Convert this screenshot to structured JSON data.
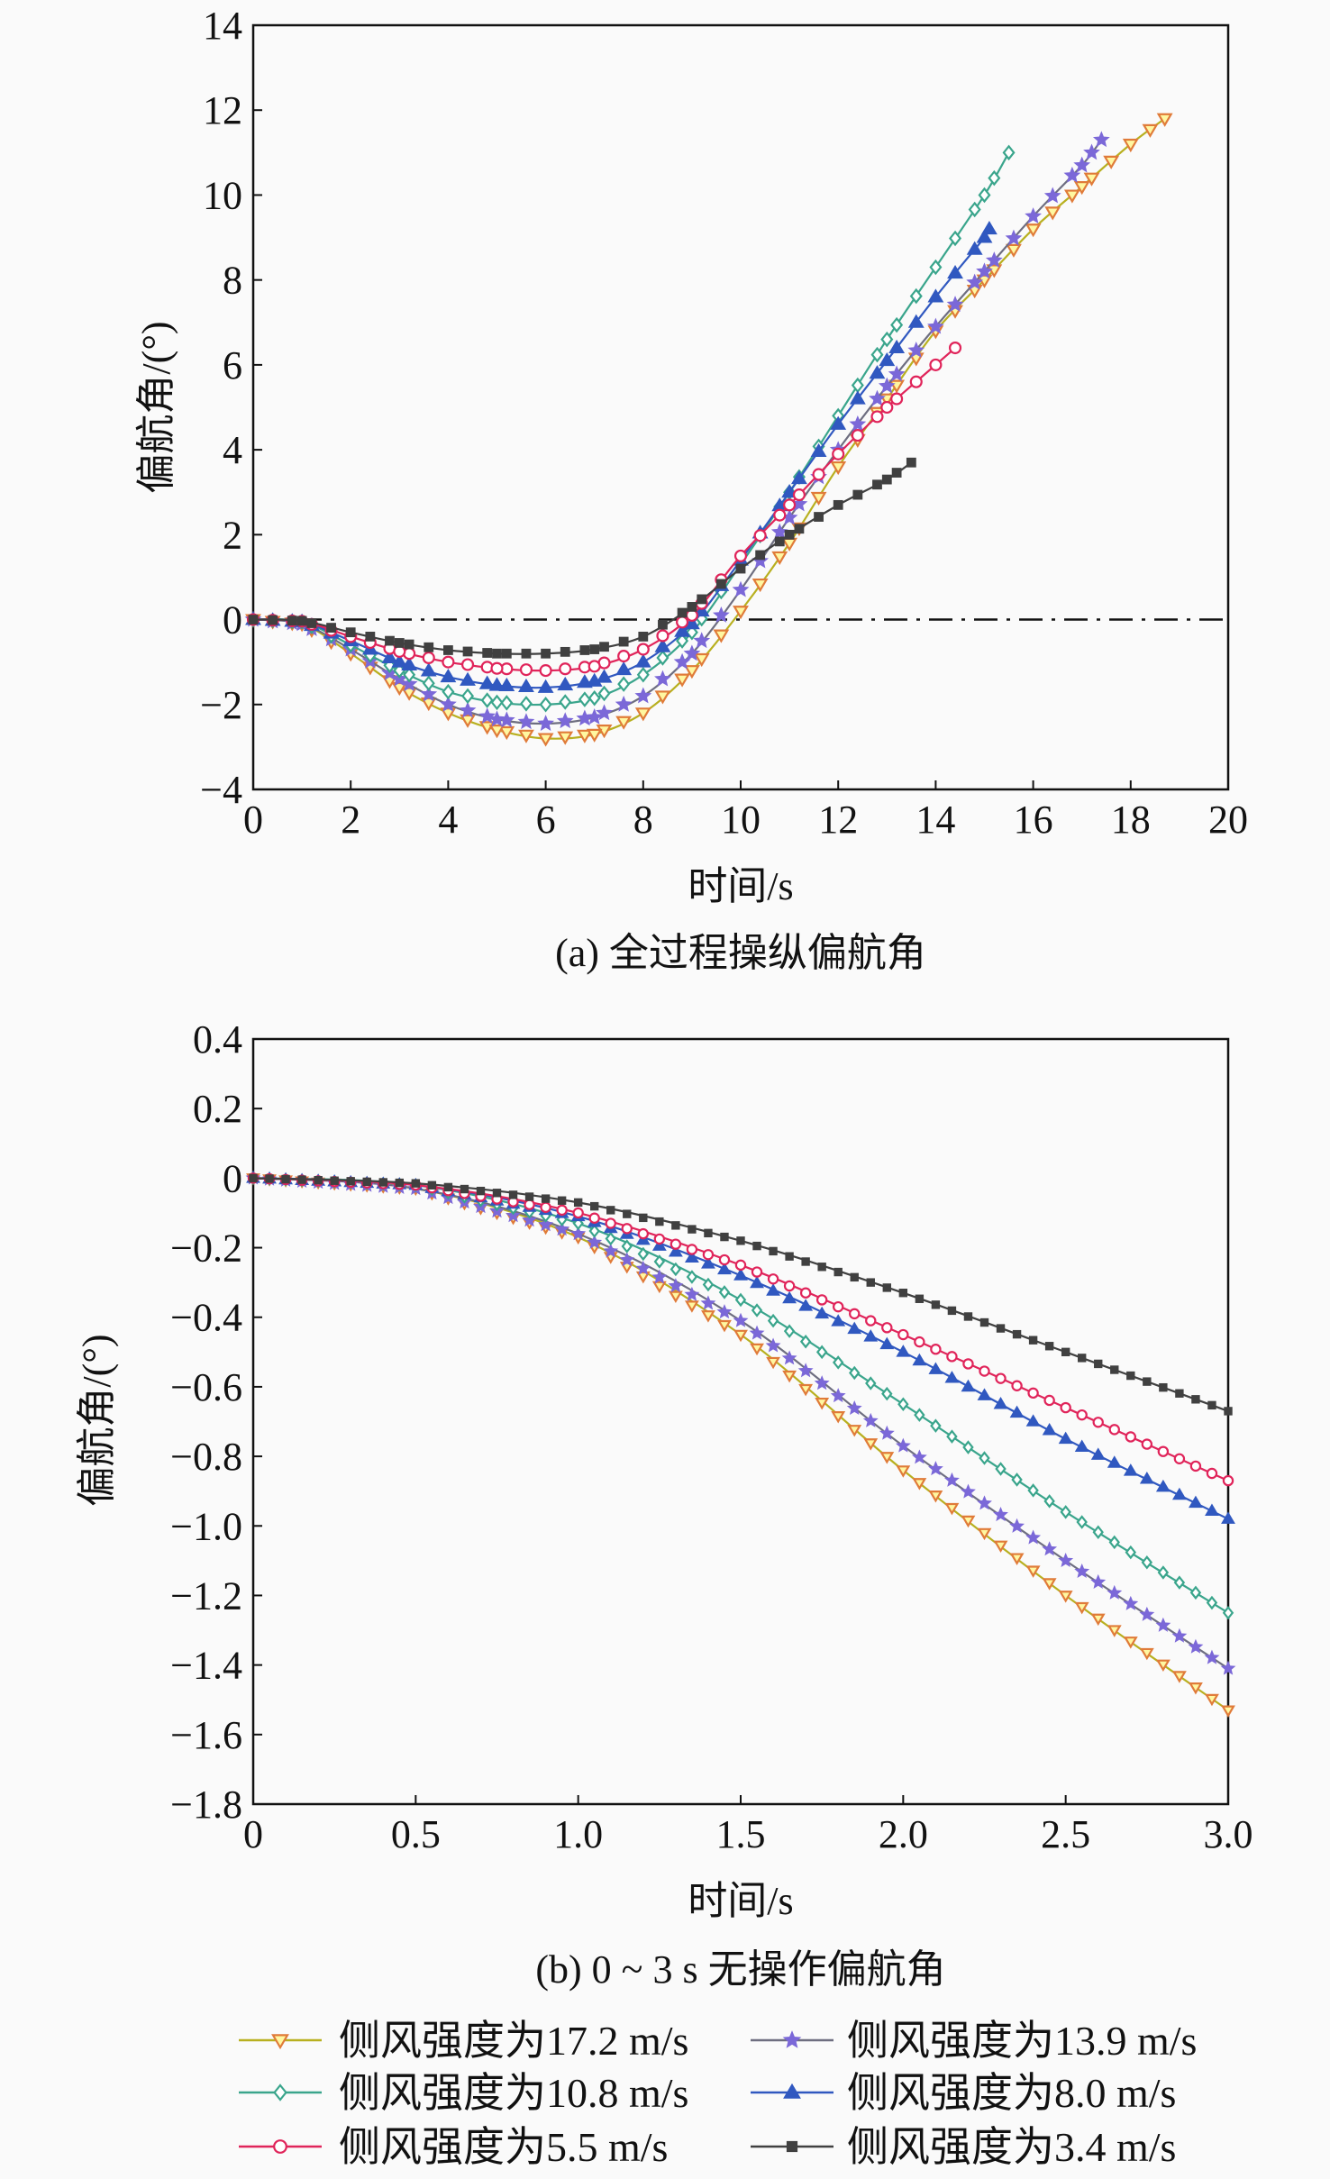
{
  "chart_data": [
    {
      "type": "line",
      "caption": "(a) 全过程操纵偏航角",
      "xlabel": "时间/s",
      "ylabel": "偏航角/(°)",
      "xlim": [
        0,
        20
      ],
      "ylim": [
        -4,
        14
      ],
      "xticks": [
        "0",
        "2",
        "4",
        "6",
        "8",
        "10",
        "12",
        "14",
        "16",
        "18",
        "20"
      ],
      "yticks": [
        "−4",
        "−2",
        "0",
        "2",
        "4",
        "6",
        "8",
        "10",
        "12",
        "14"
      ],
      "reference_line": {
        "y": 0,
        "style": "dash-dot"
      },
      "series": [
        {
          "name": "侧风强度为17.2 m/s",
          "x": [
            0,
            1,
            2,
            3,
            4,
            5,
            6,
            7,
            8,
            9,
            10,
            11,
            12,
            13,
            14,
            15,
            16,
            17,
            18,
            18.7
          ],
          "y": [
            0,
            -0.1,
            -0.8,
            -1.6,
            -2.2,
            -2.6,
            -2.8,
            -2.7,
            -2.2,
            -1.2,
            0.2,
            1.8,
            3.6,
            5.2,
            6.8,
            8.0,
            9.2,
            10.2,
            11.2,
            11.8
          ]
        },
        {
          "name": "侧风强度为13.9 m/s",
          "x": [
            0,
            1,
            2,
            3,
            4,
            5,
            6,
            7,
            8,
            9,
            10,
            11,
            12,
            13,
            14,
            15,
            16,
            17,
            17.4
          ],
          "y": [
            0,
            -0.1,
            -0.7,
            -1.4,
            -2.0,
            -2.35,
            -2.45,
            -2.3,
            -1.8,
            -0.8,
            0.7,
            2.4,
            4.0,
            5.5,
            6.9,
            8.2,
            9.5,
            10.7,
            11.3
          ]
        },
        {
          "name": "侧风强度为10.8 m/s",
          "x": [
            0,
            1,
            2,
            3,
            4,
            5,
            6,
            7,
            8,
            9,
            10,
            11,
            12,
            13,
            14,
            15,
            15.5
          ],
          "y": [
            0,
            -0.05,
            -0.6,
            -1.2,
            -1.7,
            -1.95,
            -2.0,
            -1.85,
            -1.3,
            -0.3,
            1.3,
            3.0,
            4.8,
            6.6,
            8.3,
            10.0,
            11.0
          ]
        },
        {
          "name": "侧风强度为8.0 m/s",
          "x": [
            0,
            1,
            2,
            3,
            4,
            5,
            6,
            7,
            8,
            9,
            10,
            11,
            12,
            13,
            14,
            15,
            15.1
          ],
          "y": [
            0,
            -0.05,
            -0.5,
            -1.0,
            -1.35,
            -1.55,
            -1.6,
            -1.45,
            -1.0,
            -0.1,
            1.4,
            3.0,
            4.6,
            6.1,
            7.6,
            9.0,
            9.2
          ]
        },
        {
          "name": "侧风强度为5.5 m/s",
          "x": [
            0,
            1,
            2,
            3,
            4,
            5,
            6,
            7,
            8,
            9,
            10,
            11,
            12,
            13,
            14,
            14.4
          ],
          "y": [
            0,
            -0.04,
            -0.4,
            -0.75,
            -1.0,
            -1.15,
            -1.2,
            -1.1,
            -0.7,
            0.1,
            1.5,
            2.7,
            3.9,
            5.0,
            6.0,
            6.4
          ]
        },
        {
          "name": "侧风强度为3.4 m/s",
          "x": [
            0,
            1,
            2,
            3,
            4,
            5,
            6,
            7,
            8,
            9,
            10,
            11,
            12,
            13,
            13.5
          ],
          "y": [
            0,
            -0.03,
            -0.3,
            -0.55,
            -0.72,
            -0.8,
            -0.8,
            -0.7,
            -0.4,
            0.3,
            1.2,
            2.0,
            2.7,
            3.3,
            3.7
          ]
        }
      ]
    },
    {
      "type": "line",
      "caption": "(b) 0 ~ 3 s 无操作偏航角",
      "xlabel": "时间/s",
      "ylabel": "偏航角/(°)",
      "xlim": [
        0,
        3.0
      ],
      "ylim": [
        -1.8,
        0.4
      ],
      "xticks": [
        "0",
        "0.5",
        "1.0",
        "1.5",
        "2.0",
        "2.5",
        "3.0"
      ],
      "yticks": [
        "−1.8",
        "−1.6",
        "−1.4",
        "−1.2",
        "−1.0",
        "−0.8",
        "−0.6",
        "−0.4",
        "−0.2",
        "0",
        "0.2",
        "0.4"
      ],
      "series": [
        {
          "name": "侧风强度为17.2 m/s",
          "x": [
            0,
            0.5,
            1.0,
            1.5,
            2.0,
            2.5,
            3.0
          ],
          "y": [
            0,
            -0.03,
            -0.17,
            -0.45,
            -0.84,
            -1.2,
            -1.53
          ]
        },
        {
          "name": "侧风强度为13.9 m/s",
          "x": [
            0,
            0.5,
            1.0,
            1.5,
            2.0,
            2.5,
            3.0
          ],
          "y": [
            0,
            -0.03,
            -0.16,
            -0.41,
            -0.77,
            -1.1,
            -1.41
          ]
        },
        {
          "name": "侧风强度为10.8 m/s",
          "x": [
            0,
            0.5,
            1.0,
            1.5,
            2.0,
            2.5,
            3.0
          ],
          "y": [
            0,
            -0.02,
            -0.13,
            -0.35,
            -0.65,
            -0.96,
            -1.25
          ]
        },
        {
          "name": "侧风强度为8.0 m/s",
          "x": [
            0,
            0.5,
            1.0,
            1.5,
            2.0,
            2.5,
            3.0
          ],
          "y": [
            0,
            -0.02,
            -0.11,
            -0.28,
            -0.5,
            -0.75,
            -0.98
          ]
        },
        {
          "name": "侧风强度为5.5 m/s",
          "x": [
            0,
            0.5,
            1.0,
            1.5,
            2.0,
            2.5,
            3.0
          ],
          "y": [
            0,
            -0.02,
            -0.1,
            -0.25,
            -0.45,
            -0.66,
            -0.87
          ]
        },
        {
          "name": "侧风强度为3.4 m/s",
          "x": [
            0,
            0.5,
            1.0,
            1.5,
            2.0,
            2.5,
            3.0
          ],
          "y": [
            0,
            -0.015,
            -0.07,
            -0.18,
            -0.33,
            -0.5,
            -0.67
          ]
        }
      ]
    }
  ],
  "legend": {
    "placement": "bottom",
    "items": [
      {
        "label": "侧风强度为17.2 m/s",
        "marker": "triangle-down",
        "line": "#b8b020",
        "color": "#e07b39"
      },
      {
        "label": "侧风强度为13.9 m/s",
        "marker": "star",
        "line": "#6e6e80",
        "color": "#7b68d8"
      },
      {
        "label": "侧风强度为10.8 m/s",
        "marker": "diamond",
        "line": "#3aa58c",
        "color": "#3aa58c"
      },
      {
        "label": "侧风强度为8.0 m/s",
        "marker": "triangle-up",
        "line": "#3058c0",
        "color": "#3058c0"
      },
      {
        "label": "侧风强度为5.5 m/s",
        "marker": "circle",
        "line": "#e0245a",
        "color": "#e0245a"
      },
      {
        "label": "侧风强度为3.4 m/s",
        "marker": "square",
        "line": "#404040",
        "color": "#404040"
      }
    ]
  }
}
